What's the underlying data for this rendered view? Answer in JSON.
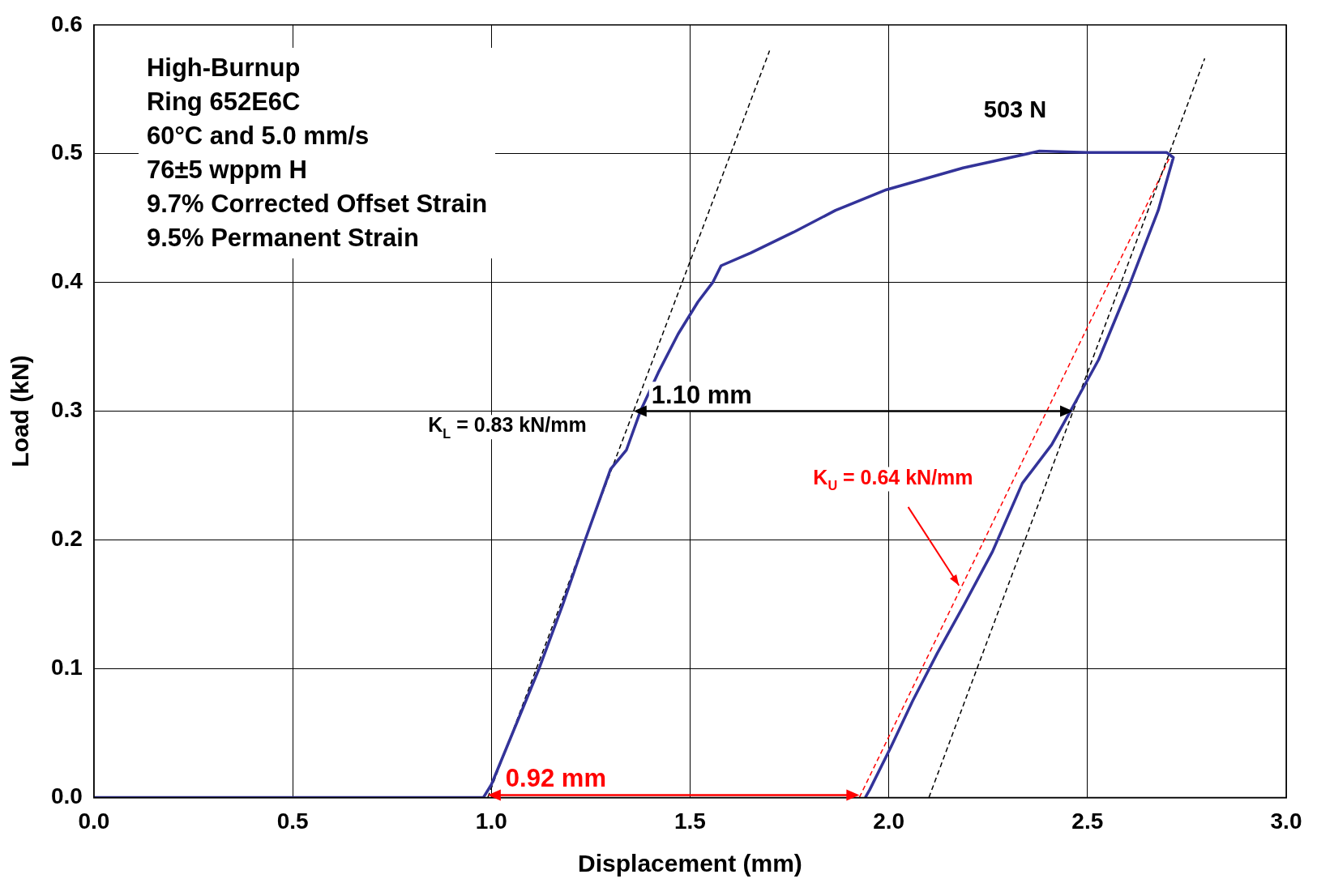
{
  "chart_data": {
    "type": "line",
    "xlabel": "Displacement (mm)",
    "ylabel": "Load (kN)",
    "xlim": [
      0,
      3
    ],
    "xticks": [
      {
        "value": 0,
        "label": "0.0"
      },
      0.5,
      {
        "value": 1,
        "label": "1.0"
      },
      1.5,
      {
        "value": 2,
        "label": "2.0"
      },
      2.5,
      {
        "value": 3,
        "label": "3.0"
      }
    ],
    "ylim": [
      0,
      0.6
    ],
    "yticks": [
      {
        "value": 0,
        "label": "0.0"
      },
      0.1,
      0.2,
      0.3,
      0.4,
      0.5,
      0.6
    ],
    "grid": true,
    "legend": false,
    "marker": "none",
    "annotations": [
      "High-Burnup",
      "Ring 652E6C",
      "60°C and 5.0 mm/s",
      "76±5 wppm H",
      "9.7% Corrected Offset Strain",
      "9.5% Permanent Strain",
      {
        "text": "503 N",
        "x": 2.379,
        "y": 0.502
      },
      {
        "text": "1.10 mm",
        "x": 1.358,
        "y": 0.3
      },
      {
        "text": "0.92 mm",
        "x": 0.991,
        "y": 0
      }
    ],
    "series": [
      {
        "type": "line",
        "color": "#333399",
        "line_style": "solid",
        "x": [
          0,
          0.98,
          1.0,
          1.06,
          1.12,
          1.18,
          1.236,
          1.3,
          1.34,
          1.375,
          1.42,
          1.47,
          1.52,
          1.557,
          1.578,
          1.653,
          1.76,
          1.866,
          1.994,
          2.187,
          2.379,
          2.5,
          2.6,
          2.699,
          2.716,
          2.678,
          2.603,
          2.528,
          2.464,
          2.43,
          2.41,
          2.336,
          2.261,
          2.19,
          2.122,
          2.06,
          2.005,
          1.952,
          1.941
        ],
        "values": [
          0,
          0,
          0.01,
          0.055,
          0.1,
          0.15,
          0.2,
          0.255,
          0.27,
          0.3,
          0.33,
          0.36,
          0.385,
          0.4,
          0.413,
          0.423,
          0.439,
          0.456,
          0.472,
          0.489,
          0.502,
          0.501,
          0.501,
          0.501,
          0.497,
          0.456,
          0.396,
          0.34,
          0.304,
          0.285,
          0.274,
          0.244,
          0.191,
          0.15,
          0.112,
          0.075,
          0.039,
          0.006,
          0
        ]
      },
      {
        "type": "line",
        "name": "K$_{L}$ = 0.83 kN/mm",
        "color": "#000000",
        "line_style": "dashed",
        "x": [
          0.991,
          1.7
        ],
        "values": [
          0,
          0.58
        ]
      },
      {
        "type": "line",
        "color": "#000000",
        "line_style": "dashed",
        "x": [
          2.101,
          2.795
        ],
        "values": [
          0,
          0.574
        ]
      },
      {
        "type": "line",
        "name": "K$_{U}$ = 0.64 kN/mm",
        "color": "#ff0000",
        "line_style": "dashed",
        "x": [
          1.926,
          2.71
        ],
        "values": [
          0,
          0.499
        ]
      }
    ]
  }
}
